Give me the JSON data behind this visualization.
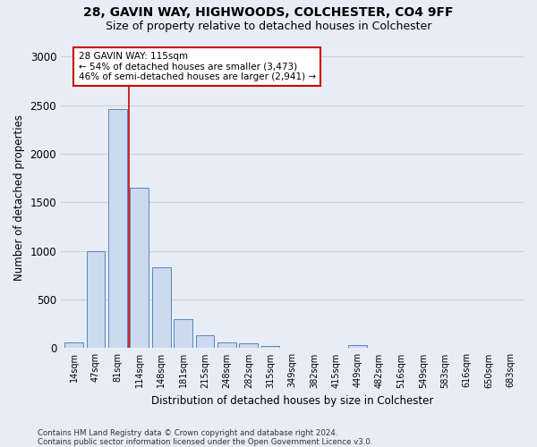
{
  "title1": "28, GAVIN WAY, HIGHWOODS, COLCHESTER, CO4 9FF",
  "title2": "Size of property relative to detached houses in Colchester",
  "xlabel": "Distribution of detached houses by size in Colchester",
  "ylabel": "Number of detached properties",
  "footnote1": "Contains HM Land Registry data © Crown copyright and database right 2024.",
  "footnote2": "Contains public sector information licensed under the Open Government Licence v3.0.",
  "bar_labels": [
    "14sqm",
    "47sqm",
    "81sqm",
    "114sqm",
    "148sqm",
    "181sqm",
    "215sqm",
    "248sqm",
    "282sqm",
    "315sqm",
    "349sqm",
    "382sqm",
    "415sqm",
    "449sqm",
    "482sqm",
    "516sqm",
    "549sqm",
    "583sqm",
    "616sqm",
    "650sqm",
    "683sqm"
  ],
  "bar_values": [
    60,
    1000,
    2460,
    1650,
    830,
    300,
    130,
    55,
    50,
    20,
    0,
    0,
    0,
    30,
    0,
    0,
    0,
    0,
    0,
    0,
    0
  ],
  "bar_color": "#ccd9ee",
  "bar_edge_color": "#5588bb",
  "red_line_color": "#cc0000",
  "red_line_x": 2.5,
  "annotation_text": "28 GAVIN WAY: 115sqm\n← 54% of detached houses are smaller (3,473)\n46% of semi-detached houses are larger (2,941) →",
  "annotation_box_color": "#ffffff",
  "annotation_box_edge": "#cc0000",
  "ylim": [
    0,
    3100
  ],
  "yticks": [
    0,
    500,
    1000,
    1500,
    2000,
    2500,
    3000
  ],
  "grid_color": "#c8d0dc",
  "bg_color": "#e8edf5",
  "title1_fontsize": 10,
  "title2_fontsize": 9
}
